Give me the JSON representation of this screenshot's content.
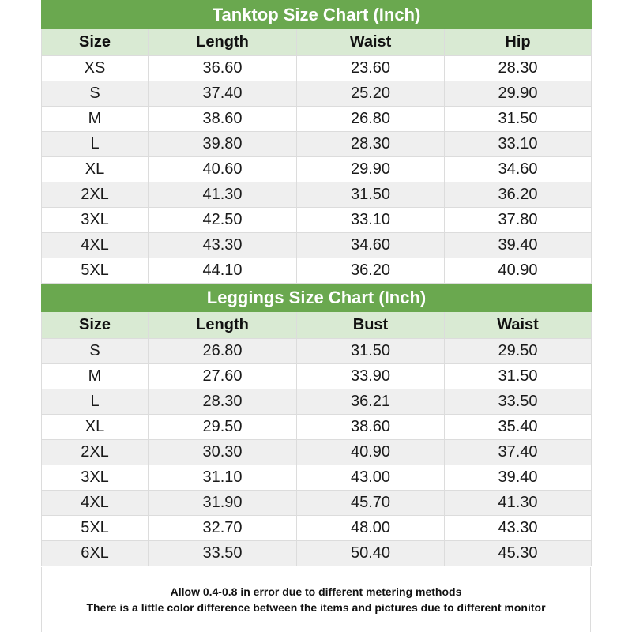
{
  "colors": {
    "title_bg": "#6aa84f",
    "header_bg": "#d9ead3",
    "row_alt": "#efefef"
  },
  "tables": [
    {
      "title": "Tanktop Size Chart (Inch)",
      "headers": [
        "Size",
        "Length",
        "Waist",
        "Hip"
      ],
      "rows": [
        [
          "XS",
          "36.60",
          "23.60",
          "28.30"
        ],
        [
          "S",
          "37.40",
          "25.20",
          "29.90"
        ],
        [
          "M",
          "38.60",
          "26.80",
          "31.50"
        ],
        [
          "L",
          "39.80",
          "28.30",
          "33.10"
        ],
        [
          "XL",
          "40.60",
          "29.90",
          "34.60"
        ],
        [
          "2XL",
          "41.30",
          "31.50",
          "36.20"
        ],
        [
          "3XL",
          "42.50",
          "33.10",
          "37.80"
        ],
        [
          "4XL",
          "43.30",
          "34.60",
          "39.40"
        ],
        [
          "5XL",
          "44.10",
          "36.20",
          "40.90"
        ]
      ]
    },
    {
      "title": "Leggings Size Chart (Inch)",
      "headers": [
        "Size",
        "Length",
        "Bust",
        "Waist"
      ],
      "rows": [
        [
          "S",
          "26.80",
          "31.50",
          "29.50"
        ],
        [
          "M",
          "27.60",
          "33.90",
          "31.50"
        ],
        [
          "L",
          "28.30",
          "36.21",
          "33.50"
        ],
        [
          "XL",
          "29.50",
          "38.60",
          "35.40"
        ],
        [
          "2XL",
          "30.30",
          "40.90",
          "37.40"
        ],
        [
          "3XL",
          "31.10",
          "43.00",
          "39.40"
        ],
        [
          "4XL",
          "31.90",
          "45.70",
          "41.30"
        ],
        [
          "5XL",
          "32.70",
          "48.00",
          "43.30"
        ],
        [
          "6XL",
          "33.50",
          "50.40",
          "45.30"
        ]
      ]
    }
  ],
  "footer": {
    "line1": "Allow 0.4-0.8 in error due to different metering methods",
    "line2": "There is a little color difference between the items and pictures due to different monitor"
  }
}
